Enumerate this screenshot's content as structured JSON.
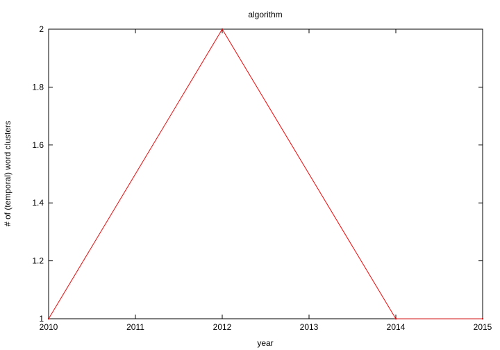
{
  "chart_data": {
    "type": "line",
    "title": "algorithm",
    "xlabel": "year",
    "ylabel": "# of (temporal) word clusters",
    "xlim": [
      2010,
      2015
    ],
    "ylim": [
      1,
      2
    ],
    "x_ticks": [
      2010,
      2011,
      2012,
      2013,
      2014,
      2015
    ],
    "y_ticks": [
      1,
      1.2,
      1.4,
      1.6,
      1.8,
      2
    ],
    "grid": false,
    "line_color": "#ff0000",
    "series": [
      {
        "x": [
          2010,
          2012,
          2014,
          2015
        ],
        "y": [
          1,
          2,
          1,
          1
        ]
      }
    ]
  }
}
